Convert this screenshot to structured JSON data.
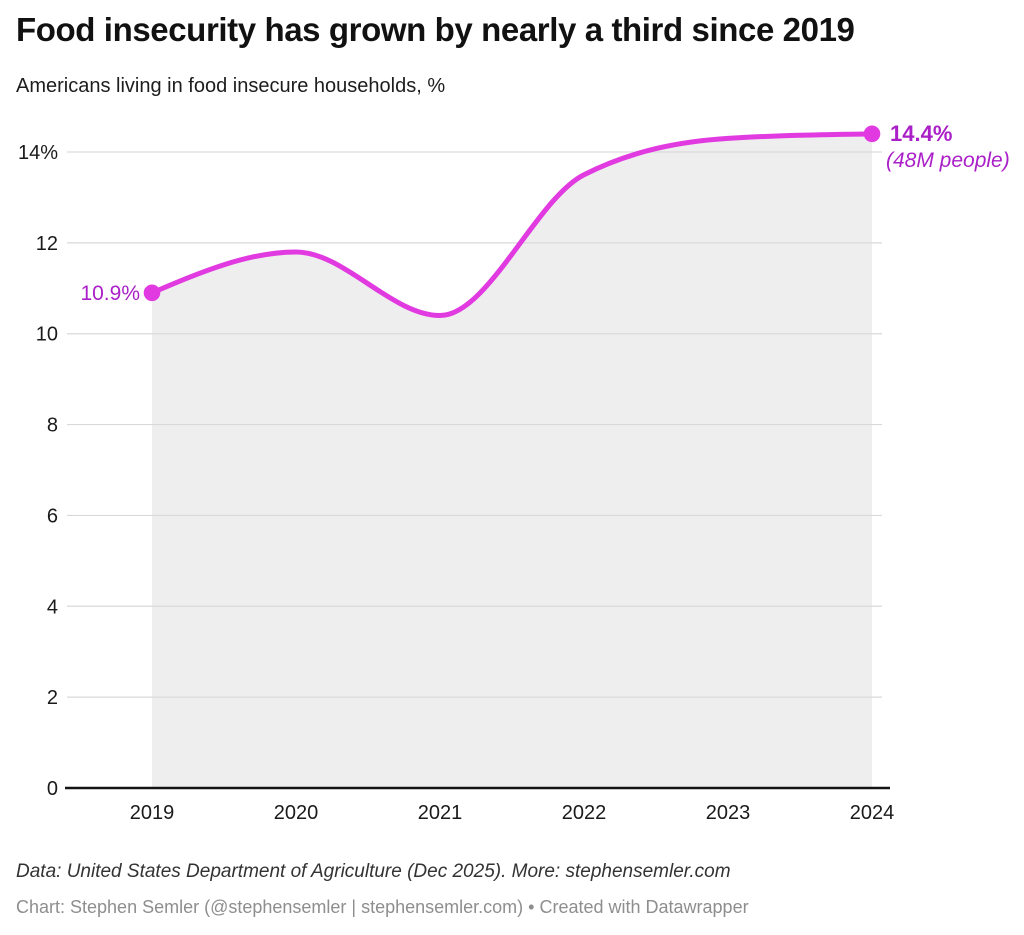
{
  "chart_data": {
    "type": "area",
    "title": "Food insecurity has grown by nearly a third since 2019",
    "subtitle": "Americans living in food insecure households, %",
    "x": [
      2019,
      2020,
      2021,
      2022,
      2023,
      2024
    ],
    "values": [
      10.9,
      11.8,
      10.4,
      13.5,
      14.3,
      14.4
    ],
    "x_tick_labels": [
      "2019",
      "2020",
      "2021",
      "2022",
      "2023",
      "2024"
    ],
    "y_ticks": [
      0,
      2,
      4,
      6,
      8,
      10,
      12,
      14
    ],
    "y_tick_labels": [
      "0",
      "2",
      "4",
      "6",
      "8",
      "10",
      "12",
      "14%"
    ],
    "ylim": [
      0,
      14.6
    ],
    "xlabel": "",
    "ylabel": "",
    "grid": "horizontal",
    "legend": "none",
    "curve": "monotone",
    "start_label": "10.9%",
    "end_label": "14.4%",
    "end_sublabel": "(48M people)",
    "colors": {
      "line": "#e03ae0",
      "area_fill": "#eeeeee",
      "value_label": "#aa1fc8",
      "gridline": "#d9d9d9",
      "baseline": "#141414",
      "tick_text": "#1a1a1a"
    }
  },
  "footer": {
    "source_line": "Data: United States Department of Agriculture (Dec 2025). More: stephensemler.com",
    "byline": "Chart: Stephen Semler (@stephensemler | stephensemler.com) • Created with Datawrapper"
  }
}
